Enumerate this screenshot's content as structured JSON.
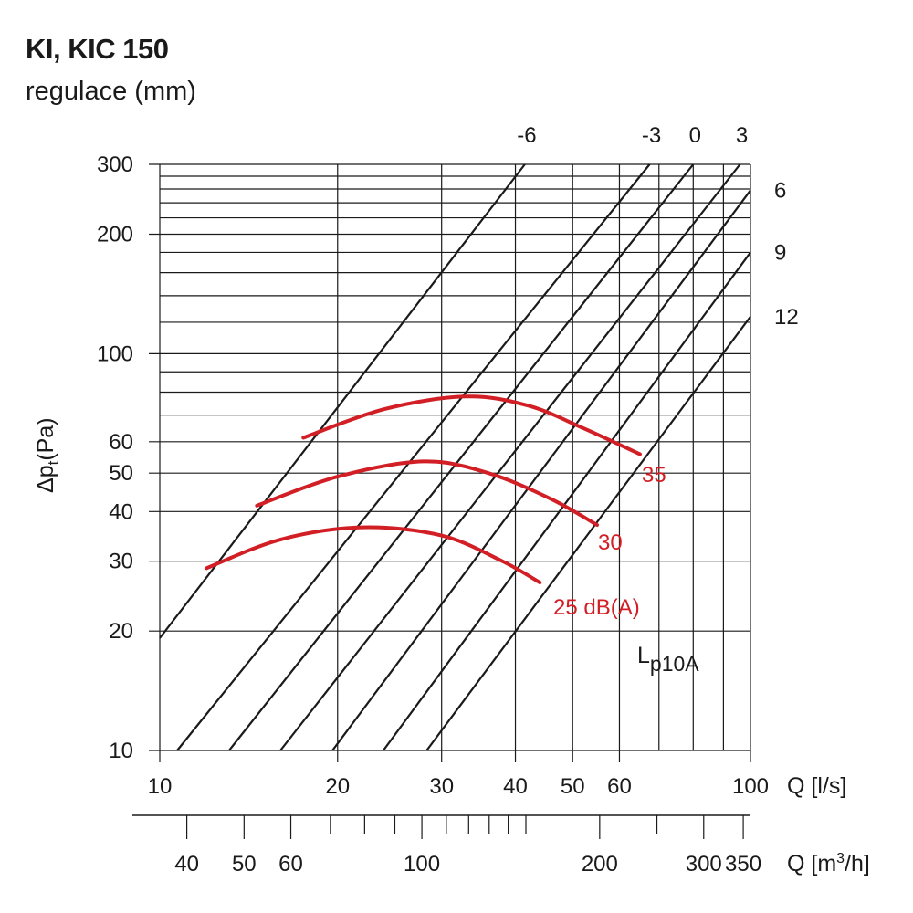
{
  "title": "KI, KIC 150",
  "subtitle": "regulace (mm)",
  "chart_data": {
    "type": "line",
    "x_axis": {
      "label": "Q [l/s]",
      "scale": "log",
      "range": [
        10,
        100
      ],
      "tick_labels": [
        "10",
        "20",
        "30",
        "40",
        "50",
        "60",
        "100"
      ],
      "ticks": [
        10,
        20,
        30,
        40,
        50,
        60,
        100
      ]
    },
    "x2_axis": {
      "label_main": "Q [m",
      "label_sup": "3",
      "label_end": "/h]",
      "scale": "log",
      "tick_labels": [
        "40",
        "50",
        "60",
        "100",
        "200",
        "300",
        "350"
      ],
      "ticks": [
        40,
        50,
        60,
        100,
        200,
        300,
        350
      ]
    },
    "y_axis": {
      "label_main": "Δp",
      "label_sub": "t",
      "label_end": "(Pa)",
      "scale": "log",
      "range": [
        10,
        300
      ],
      "tick_labels": [
        "10",
        "20",
        "30",
        "40",
        "50",
        "60",
        "100",
        "200",
        "300"
      ],
      "ticks": [
        10,
        20,
        30,
        40,
        50,
        60,
        100,
        200,
        300
      ]
    },
    "regulation_series": [
      {
        "label": "-6",
        "points": [
          [
            10,
            19.2
          ],
          [
            41.5,
            300
          ]
        ]
      },
      {
        "label": "-3",
        "points": [
          [
            10.7,
            10
          ],
          [
            67.5,
            300
          ]
        ]
      },
      {
        "label": "0",
        "points": [
          [
            13.1,
            10
          ],
          [
            80,
            300
          ]
        ]
      },
      {
        "label": "3",
        "points": [
          [
            16,
            10
          ],
          [
            96,
            300
          ]
        ]
      },
      {
        "label": "6",
        "points": [
          [
            19.6,
            10
          ],
          [
            100,
            258
          ]
        ]
      },
      {
        "label": "9",
        "points": [
          [
            23.9,
            10
          ],
          [
            100,
            180
          ]
        ]
      },
      {
        "label": "12",
        "points": [
          [
            28.3,
            10
          ],
          [
            100,
            124
          ]
        ]
      }
    ],
    "noise_series": [
      {
        "label": "25 dB(A)",
        "color": "#d21f26",
        "points": [
          [
            12.0,
            28.8
          ],
          [
            16.0,
            34.0
          ],
          [
            22.0,
            36.5
          ],
          [
            30.0,
            34.8
          ],
          [
            38.0,
            30.0
          ],
          [
            44.0,
            26.5
          ]
        ]
      },
      {
        "label": "30",
        "color": "#d21f26",
        "points": [
          [
            14.6,
            41.4
          ],
          [
            20.0,
            49.0
          ],
          [
            28.0,
            53.5
          ],
          [
            36.0,
            50.0
          ],
          [
            46.0,
            43.0
          ],
          [
            55.0,
            37.0
          ]
        ]
      },
      {
        "label": "35",
        "color": "#d21f26",
        "points": [
          [
            17.5,
            61.4
          ],
          [
            24.0,
            72.5
          ],
          [
            33.0,
            78.0
          ],
          [
            42.0,
            74.0
          ],
          [
            52.0,
            65.0
          ],
          [
            65.0,
            55.8
          ]
        ]
      }
    ],
    "annotation": {
      "main": "L",
      "sub": "p10A"
    },
    "grid": true
  }
}
